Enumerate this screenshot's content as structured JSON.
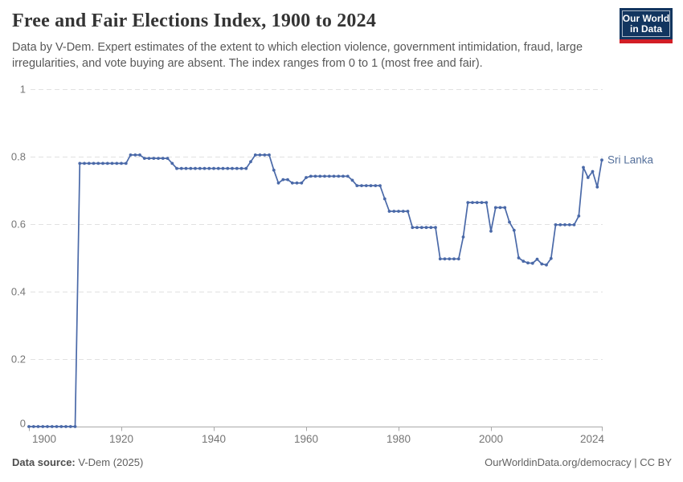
{
  "header": {
    "title": "Free and Fair Elections Index, 1900 to 2024",
    "subtitle": "Data by V-Dem. Expert estimates of the extent to which election violence, government intimidation, fraud, large irregularities, and vote buying are absent. The index ranges from 0 to 1 (most free and fair).",
    "logo": {
      "line1": "Our World",
      "line2": "in Data",
      "bg_color": "#12355f",
      "accent_color": "#d21e26"
    }
  },
  "footer": {
    "source_label": "Data source:",
    "source_value": " V-Dem (2025)",
    "right_text": "OurWorldinData.org/democracy | CC BY"
  },
  "chart_data": {
    "type": "line",
    "title": "Free and Fair Elections Index, 1900 to 2024",
    "series_label": "Sri Lanka",
    "line_color": "#4a69a8",
    "series_label_color": "#55709b",
    "grid_color": "#e1e1e1",
    "axis_color": "#a9a9a9",
    "tick_label_color": "#757575",
    "grid": "dashed horizontal gridlines, legend as end-of-line label",
    "xlim": [
      1900,
      2024
    ],
    "ylim": [
      0,
      1
    ],
    "x_ticks": [
      1900,
      1920,
      1940,
      1960,
      1980,
      2000,
      2024
    ],
    "y_ticks": [
      0,
      0.2,
      0.4,
      0.6,
      0.8,
      1
    ],
    "y_tick_labels": [
      "0",
      "0.2",
      "0.4",
      "0.6",
      "0.8",
      "1"
    ],
    "x": [
      1900,
      1901,
      1902,
      1903,
      1904,
      1905,
      1906,
      1907,
      1908,
      1909,
      1910,
      1911,
      1912,
      1913,
      1914,
      1915,
      1916,
      1917,
      1918,
      1919,
      1920,
      1921,
      1922,
      1923,
      1924,
      1925,
      1926,
      1927,
      1928,
      1929,
      1930,
      1931,
      1932,
      1933,
      1934,
      1935,
      1936,
      1937,
      1938,
      1939,
      1940,
      1941,
      1942,
      1943,
      1944,
      1945,
      1946,
      1947,
      1948,
      1949,
      1950,
      1951,
      1952,
      1953,
      1954,
      1955,
      1956,
      1957,
      1958,
      1959,
      1960,
      1961,
      1962,
      1963,
      1964,
      1965,
      1966,
      1967,
      1968,
      1969,
      1970,
      1971,
      1972,
      1973,
      1974,
      1975,
      1976,
      1977,
      1978,
      1979,
      1980,
      1981,
      1982,
      1983,
      1984,
      1985,
      1986,
      1987,
      1988,
      1989,
      1990,
      1991,
      1992,
      1993,
      1994,
      1995,
      1996,
      1997,
      1998,
      1999,
      2000,
      2001,
      2002,
      2003,
      2004,
      2005,
      2006,
      2007,
      2008,
      2009,
      2010,
      2011,
      2012,
      2013,
      2014,
      2015,
      2016,
      2017,
      2018,
      2019,
      2020,
      2021,
      2022,
      2023,
      2024
    ],
    "values": [
      0,
      0,
      0,
      0,
      0,
      0,
      0,
      0,
      0,
      0,
      0,
      0.78,
      0.78,
      0.78,
      0.78,
      0.78,
      0.78,
      0.78,
      0.78,
      0.78,
      0.78,
      0.78,
      0.805,
      0.805,
      0.805,
      0.795,
      0.795,
      0.795,
      0.795,
      0.795,
      0.795,
      0.78,
      0.765,
      0.765,
      0.765,
      0.765,
      0.765,
      0.765,
      0.765,
      0.765,
      0.765,
      0.765,
      0.765,
      0.765,
      0.765,
      0.765,
      0.765,
      0.765,
      0.785,
      0.805,
      0.805,
      0.805,
      0.805,
      0.76,
      0.722,
      0.732,
      0.732,
      0.722,
      0.722,
      0.722,
      0.738,
      0.742,
      0.742,
      0.742,
      0.742,
      0.742,
      0.742,
      0.742,
      0.742,
      0.742,
      0.73,
      0.714,
      0.714,
      0.714,
      0.714,
      0.714,
      0.714,
      0.675,
      0.638,
      0.638,
      0.638,
      0.638,
      0.638,
      0.59,
      0.59,
      0.59,
      0.59,
      0.59,
      0.59,
      0.497,
      0.497,
      0.497,
      0.497,
      0.497,
      0.562,
      0.664,
      0.664,
      0.664,
      0.664,
      0.664,
      0.579,
      0.649,
      0.649,
      0.649,
      0.606,
      0.582,
      0.5,
      0.49,
      0.485,
      0.484,
      0.496,
      0.482,
      0.479,
      0.498,
      0.598,
      0.598,
      0.598,
      0.598,
      0.598,
      0.624,
      0.768,
      0.738,
      0.756,
      0.71,
      0.79
    ]
  }
}
